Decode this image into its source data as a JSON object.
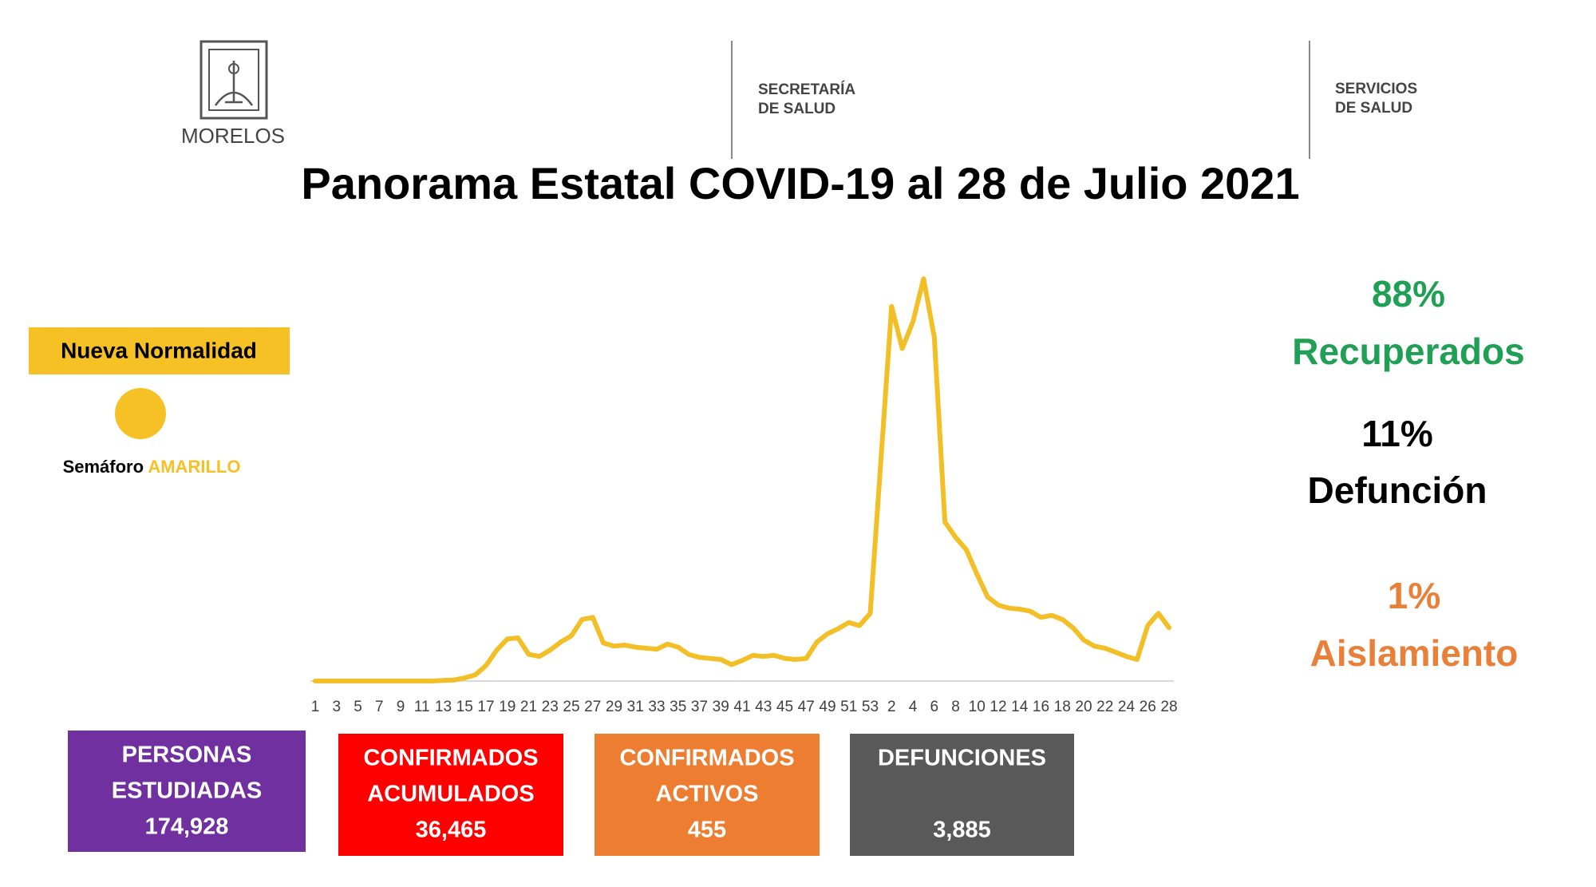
{
  "header": {
    "state": "MORELOS",
    "secretaria": [
      "SECRETARÍA",
      "DE SALUD"
    ],
    "servicios": [
      "SERVICIOS",
      "DE SALUD"
    ]
  },
  "title": "Panorama Estatal COVID-19 al 28 de Julio 2021",
  "semaforo": {
    "badge": "Nueva Normalidad",
    "label": "Semáforo",
    "level": "AMARILLO",
    "color": "#f6c125"
  },
  "chart_data": {
    "type": "line",
    "categories": [
      "1",
      null,
      "3",
      null,
      "5",
      null,
      "7",
      null,
      "9",
      null,
      "11",
      null,
      "13",
      null,
      "15",
      null,
      "17",
      null,
      "19",
      null,
      "21",
      null,
      "23",
      null,
      "25",
      null,
      "27",
      null,
      "29",
      null,
      "31",
      null,
      "33",
      null,
      "35",
      null,
      "37",
      null,
      "39",
      null,
      "41",
      null,
      "43",
      null,
      "45",
      null,
      "47",
      null,
      "49",
      null,
      "51",
      null,
      "53",
      null,
      "2",
      null,
      "4",
      null,
      "6",
      null,
      "8",
      null,
      "10",
      null,
      "12",
      null,
      "14",
      null,
      "16",
      null,
      "18",
      null,
      "20",
      null,
      "22",
      null,
      "24",
      null,
      "26",
      null,
      "28"
    ],
    "values": [
      0,
      0,
      0,
      0,
      0,
      0,
      0,
      0,
      0,
      0,
      0,
      0,
      3,
      5,
      15,
      30,
      75,
      150,
      205,
      210,
      130,
      120,
      150,
      190,
      220,
      300,
      310,
      185,
      170,
      175,
      165,
      160,
      155,
      180,
      165,
      130,
      115,
      110,
      105,
      80,
      100,
      125,
      120,
      125,
      110,
      105,
      110,
      190,
      230,
      255,
      285,
      270,
      330,
      1075,
      1825,
      1620,
      1750,
      1960,
      1675,
      775,
      700,
      640,
      520,
      410,
      370,
      355,
      350,
      340,
      310,
      320,
      300,
      260,
      200,
      170,
      160,
      140,
      120,
      105,
      270,
      330,
      260
    ],
    "color": "#f2bf26",
    "ylim": [
      0,
      2050
    ]
  },
  "indicators": [
    {
      "value": "88%",
      "label": "Recuperados",
      "color": "#1fa055"
    },
    {
      "value": "11%",
      "label": "Defunción",
      "color": "#000000"
    },
    {
      "value": "1%",
      "label": "Aislamiento",
      "color": "#e8803a"
    }
  ],
  "boxes": [
    {
      "lines": [
        "PERSONAS",
        "ESTUDIADAS"
      ],
      "value": "174,928",
      "color": "#7030a0"
    },
    {
      "lines": [
        "CONFIRMADOS",
        "ACUMULADOS"
      ],
      "value": "36,465",
      "color": "#ff0000"
    },
    {
      "lines": [
        "CONFIRMADOS",
        "ACTIVOS"
      ],
      "value": "455",
      "color": "#ed7d31"
    },
    {
      "lines": [
        "DEFUNCIONES"
      ],
      "value": "3,885",
      "color": "#595959"
    }
  ]
}
